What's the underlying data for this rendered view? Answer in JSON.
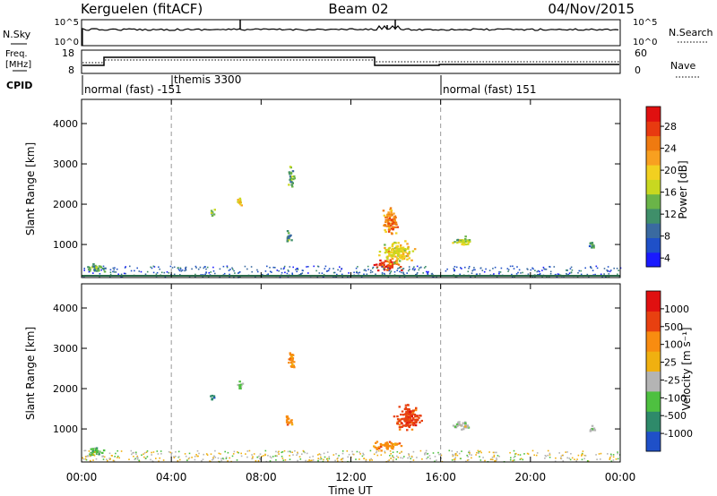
{
  "header": {
    "station": "Kerguelen (fitACF)",
    "beam": "Beam 02",
    "date": "04/Nov/2015"
  },
  "nsky_panel": {
    "left_label": "N.Sky",
    "right_label": "N.Search",
    "left_ticks": [
      "10^5",
      "10^0"
    ],
    "right_ticks": [
      "10^5",
      "10^0"
    ]
  },
  "freq_panel": {
    "left_label_1": "Freq.",
    "left_label_2": "[MHz]",
    "right_label": "Nave",
    "left_ticks": [
      "18",
      "8"
    ],
    "right_ticks": [
      "60",
      "0"
    ]
  },
  "cpid_panel": {
    "label": "CPID",
    "segments": [
      {
        "label": "normal (fast) -151",
        "start_h": 0
      },
      {
        "label": "themis 3300",
        "start_h": 4
      },
      {
        "label": "normal (fast) 151",
        "start_h": 16
      }
    ]
  },
  "x_axis": {
    "label": "Time UT",
    "ticks": [
      "00:00",
      "04:00",
      "08:00",
      "12:00",
      "16:00",
      "20:00",
      "00:00"
    ],
    "range_h": [
      0,
      24
    ]
  },
  "chart_data": [
    {
      "type": "heatmap",
      "title": "",
      "xlabel": "Time UT",
      "ylabel": "Slant Range [km]",
      "xlim_h": [
        0,
        24
      ],
      "ylim_km": [
        180,
        4600
      ],
      "yticks": [
        "1000",
        "2000",
        "3000",
        "4000"
      ],
      "colorbar": {
        "label": "Power [dB]",
        "ticks": [
          "28",
          "24",
          "20",
          "16",
          "12",
          "8",
          "4"
        ],
        "colors": [
          "#1a1aff",
          "#1f50c8",
          "#3a6aa0",
          "#3f8f6a",
          "#6ab448",
          "#c8d820",
          "#f2d020",
          "#f8a020",
          "#ef7a10",
          "#e83a10",
          "#e01010"
        ]
      },
      "blobs": [
        {
          "t": 13.6,
          "r": 520,
          "dt": 0.75,
          "dr": 180,
          "v": 26
        },
        {
          "t": 14.0,
          "r": 800,
          "dt": 0.9,
          "dr": 350,
          "v": 16
        },
        {
          "t": 13.7,
          "r": 1600,
          "dt": 0.45,
          "dr": 450,
          "v": 22
        },
        {
          "t": 16.9,
          "r": 1100,
          "dt": 0.55,
          "dr": 130,
          "v": 14
        },
        {
          "t": 9.3,
          "r": 2700,
          "dt": 0.2,
          "dr": 300,
          "v": 10
        },
        {
          "t": 7.0,
          "r": 2100,
          "dt": 0.15,
          "dr": 150,
          "v": 18
        },
        {
          "t": 0.6,
          "r": 450,
          "dt": 0.5,
          "dr": 150,
          "v": 10
        },
        {
          "t": 22.7,
          "r": 1000,
          "dt": 0.2,
          "dr": 120,
          "v": 8
        },
        {
          "t": 5.8,
          "r": 1800,
          "dt": 0.12,
          "dr": 120,
          "v": 12
        },
        {
          "t": 9.2,
          "r": 1200,
          "dt": 0.18,
          "dr": 200,
          "v": 8
        }
      ]
    },
    {
      "type": "heatmap",
      "title": "",
      "xlabel": "Time UT",
      "ylabel": "Slant Range [km]",
      "xlim_h": [
        0,
        24
      ],
      "ylim_km": [
        180,
        4600
      ],
      "yticks": [
        "1000",
        "2000",
        "3000",
        "4000"
      ],
      "colorbar": {
        "label": "Velocity [m s⁻¹]",
        "ticks": [
          "1000",
          "500",
          "100",
          "25",
          "-25",
          "-100",
          "-500",
          "-1000"
        ],
        "colors": [
          "#1f50c8",
          "#2e8a6a",
          "#4ec040",
          "#b4b4b4",
          "#f0b010",
          "#f88c10",
          "#e84010",
          "#e01010"
        ]
      },
      "blobs": [
        {
          "t": 13.6,
          "r": 600,
          "dt": 0.75,
          "dr": 160,
          "v": 5
        },
        {
          "t": 14.5,
          "r": 1300,
          "dt": 0.7,
          "dr": 450,
          "v": 6
        },
        {
          "t": 16.9,
          "r": 1100,
          "dt": 0.55,
          "dr": 130,
          "v": 3
        },
        {
          "t": 9.3,
          "r": 2700,
          "dt": 0.2,
          "dr": 300,
          "v": 5
        },
        {
          "t": 7.0,
          "r": 2100,
          "dt": 0.15,
          "dr": 150,
          "v": 2
        },
        {
          "t": 0.6,
          "r": 450,
          "dt": 0.5,
          "dr": 150,
          "v": 2
        },
        {
          "t": 22.7,
          "r": 1000,
          "dt": 0.2,
          "dr": 120,
          "v": 3
        },
        {
          "t": 5.8,
          "r": 1800,
          "dt": 0.12,
          "dr": 120,
          "v": 1
        },
        {
          "t": 9.2,
          "r": 1200,
          "dt": 0.18,
          "dr": 200,
          "v": 5
        }
      ]
    }
  ]
}
